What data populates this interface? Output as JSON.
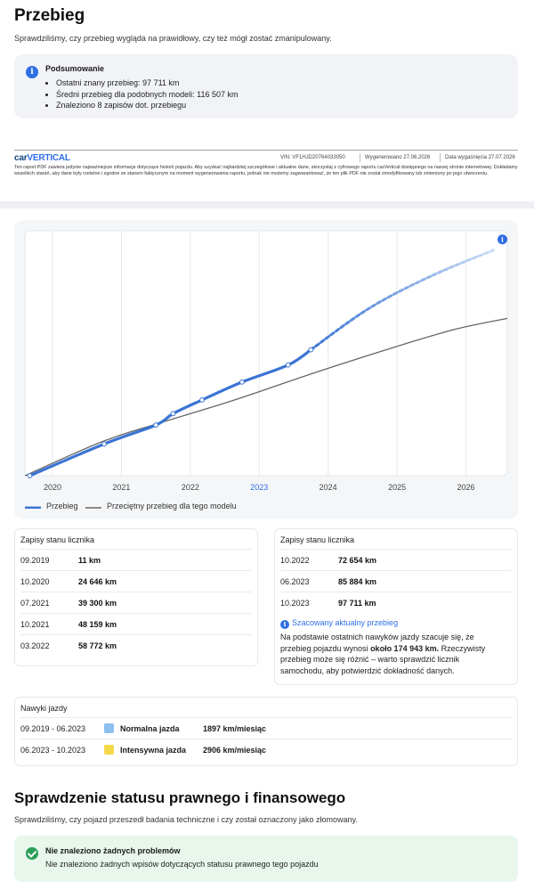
{
  "mileage": {
    "title": "Przebieg",
    "subtitle": "Sprawdziliśmy, czy przebieg wygląda na prawidłowy, czy też mógł zostać zmanipulowany.",
    "summary": {
      "title": "Podsumowanie",
      "items": [
        "Ostatni znany przebieg: 97 711 km",
        "Średni przebieg dla podobnych modeli: 116 507 km",
        "Znaleziono 8 zapisów dot. przebiegu"
      ]
    }
  },
  "report_footer": {
    "logo_car": "car",
    "logo_vertical": "VERTICAL",
    "vin": "VIN: VF1HJD20764033050",
    "generated": "Wygenerowano 27.06.2026",
    "expiry": "Data wygaśnięcia 27.07.2026",
    "disclaimer": "Ten raport PDF zawiera jedynie najważniejsze informacje dotyczące historii pojazdu. Aby uzyskać najbardziej szczegółowe i aktualne dane, skorzystaj z cyfrowego raportu carVertical dostępnego na naszej stronie internetowej. Dokładamy wszelkich starań, aby dane były rzetelne i zgodne ze stanem faktycznym na moment wygenerowania raportu, jednak nie możemy zagwarantować, że ten plik PDF nie został zmodyfikowany lub zmieniony po jego utworzeniu."
  },
  "chart_data": {
    "type": "line",
    "title": "",
    "xlabel": "",
    "ylabel": "",
    "x_ticks": [
      "2020",
      "2021",
      "2022",
      "2023",
      "2024",
      "2025",
      "2026"
    ],
    "highlight_tick": "2023",
    "xlim": [
      2019.6,
      2026.6
    ],
    "ylim": [
      0,
      190000
    ],
    "grid": true,
    "legend_position": "bottom-left",
    "series": [
      {
        "name": "Przebieg",
        "style": "dotted-line",
        "color": "#3a74d4",
        "points": [
          {
            "x": 2019.67,
            "y": 11
          },
          {
            "x": 2020.75,
            "y": 24646
          },
          {
            "x": 2021.5,
            "y": 39300
          },
          {
            "x": 2021.75,
            "y": 48159
          },
          {
            "x": 2022.17,
            "y": 58772
          },
          {
            "x": 2022.75,
            "y": 72654
          },
          {
            "x": 2023.42,
            "y": 85884
          },
          {
            "x": 2023.75,
            "y": 97711
          }
        ]
      },
      {
        "name": "Szacowany przebieg",
        "style": "dashed-fading",
        "color": "#3a74d4",
        "points": [
          {
            "x": 2023.75,
            "y": 97711
          },
          {
            "x": 2024.6,
            "y": 130000
          },
          {
            "x": 2025.5,
            "y": 155000
          },
          {
            "x": 2026.4,
            "y": 174943
          }
        ]
      },
      {
        "name": "Przeciętny przebieg dla tego modelu",
        "style": "solid",
        "color": "#666666",
        "points": [
          {
            "x": 2019.6,
            "y": 0
          },
          {
            "x": 2020.7,
            "y": 26000
          },
          {
            "x": 2021.5,
            "y": 40000
          },
          {
            "x": 2022.6,
            "y": 58000
          },
          {
            "x": 2023.7,
            "y": 78000
          },
          {
            "x": 2024.8,
            "y": 97000
          },
          {
            "x": 2025.8,
            "y": 113000
          },
          {
            "x": 2026.6,
            "y": 122000
          }
        ]
      }
    ],
    "legend": [
      "Przebieg",
      "Przeciętny przebieg dla tego modelu"
    ]
  },
  "odometer": {
    "title": "Zapisy stanu licznika",
    "records_left": [
      {
        "date": "09.2019",
        "value": "11 km"
      },
      {
        "date": "10.2020",
        "value": "24 646 km"
      },
      {
        "date": "07.2021",
        "value": "39 300 km"
      },
      {
        "date": "10.2021",
        "value": "48 159 km"
      },
      {
        "date": "03.2022",
        "value": "58 772 km"
      }
    ],
    "records_right": [
      {
        "date": "10.2022",
        "value": "72 654 km"
      },
      {
        "date": "06.2023",
        "value": "85 884 km"
      },
      {
        "date": "10.2023",
        "value": "97 711 km"
      }
    ],
    "estimate": {
      "title": "Szacowany aktualny przebieg",
      "text_before": "Na podstawie ostatnich nawyków jazdy szacuje się, że przebieg pojazdu wynosi ",
      "highlight": "około 174 943 km.",
      "text_after": " Rzeczywisty przebieg może się różnić – warto sprawdzić licznik samochodu, aby potwierdzić dokładność danych."
    }
  },
  "driving": {
    "title": "Nawyki jazdy",
    "rows": [
      {
        "period": "09.2019 - 06.2023",
        "style": "Normalna jazda",
        "rate": "1897 km/miesiąc",
        "color": "#8ec0ef"
      },
      {
        "period": "06.2023 - 10.2023",
        "style": "Intensywna jazda",
        "rate": "2906 km/miesiąc",
        "color": "#f5d94a"
      }
    ]
  },
  "legal": {
    "title": "Sprawdzenie statusu prawnego i finansowego",
    "subtitle": "Sprawdziliśmy, czy pojazd przeszedł badania techniczne i czy został oznaczony jako złomowany.",
    "box_title": "Nie znaleziono żadnych problemów",
    "box_text": "Nie znaleziono żadnych wpisów dotyczących statusu prawnego tego pojazdu"
  }
}
